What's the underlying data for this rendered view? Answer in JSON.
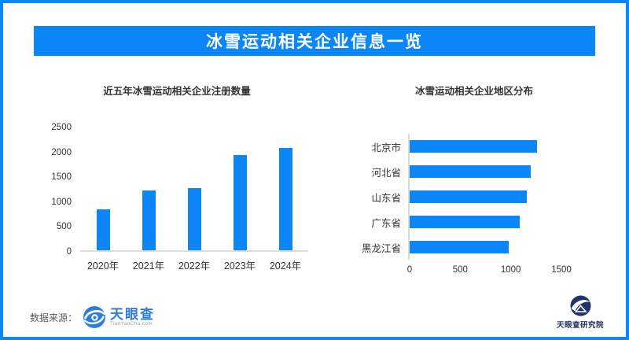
{
  "header": {
    "title": "冰雪运动相关企业信息一览"
  },
  "chart_data": [
    {
      "id": "registrations-by-year",
      "type": "bar",
      "title": "近五年冰雪运动相关企业注册数量",
      "categories": [
        "2020年",
        "2021年",
        "2022年",
        "2023年",
        "2024年"
      ],
      "values": [
        820,
        1200,
        1255,
        1910,
        2050
      ],
      "xlabel": "",
      "ylabel": "",
      "ylim": [
        0,
        2500
      ],
      "yticks": [
        0,
        500,
        1000,
        1500,
        2000,
        2500
      ],
      "grid": false,
      "legend": "none",
      "bar_color": "#0b86f8"
    },
    {
      "id": "regions-distribution",
      "type": "bar-horizontal",
      "title": "冰雪运动相关企业地区分布",
      "categories": [
        "北京市",
        "河北省",
        "山东省",
        "广东省",
        "黑龙江省"
      ],
      "values": [
        1260,
        1200,
        1160,
        1090,
        980
      ],
      "xlabel": "",
      "ylabel": "",
      "xlim": [
        0,
        1500
      ],
      "xticks": [
        0,
        500,
        1000,
        1500
      ],
      "grid": false,
      "legend": "none",
      "bar_color": "#0b86f8"
    }
  ],
  "footer": {
    "source_label": "数据来源：",
    "tianyancha_name": "天眼查",
    "tianyancha_domain": "TianYanCha.com",
    "institute_name": "天眼查研究院"
  },
  "colors": {
    "accent_blue": "#0b86f8",
    "banner_text": "#ffffff",
    "axis_text": "#333333",
    "tianyancha_blue": "#2f7cdf",
    "institute_navy": "#223461"
  }
}
